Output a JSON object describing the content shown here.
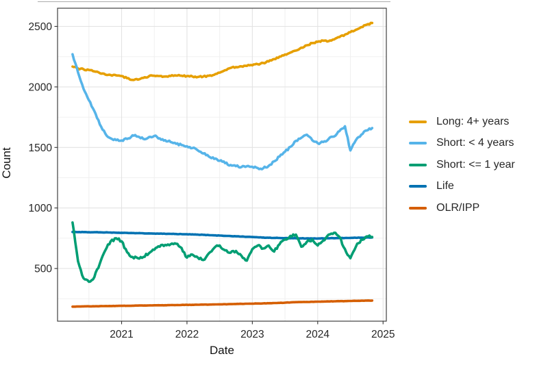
{
  "chart_data": {
    "type": "line",
    "title": "",
    "xlabel": "Date",
    "ylabel": "Count",
    "x_unit": "month",
    "legend_position": "right",
    "grid": true,
    "xlim": [
      2020.02,
      2025.05
    ],
    "ylim": [
      65,
      2650
    ],
    "x_ticks": [
      {
        "value": 2021,
        "label": "2021"
      },
      {
        "value": 2022,
        "label": "2022"
      },
      {
        "value": 2023,
        "label": "2023"
      },
      {
        "value": 2024,
        "label": "2024"
      },
      {
        "value": 2025,
        "label": "2025"
      }
    ],
    "x_minor": [
      2020.5,
      2021.5,
      2022.5,
      2023.5,
      2024.5
    ],
    "y_ticks": [
      {
        "value": 500,
        "label": "500"
      },
      {
        "value": 1000,
        "label": "1000"
      },
      {
        "value": 1500,
        "label": "1500"
      },
      {
        "value": 2000,
        "label": "2000"
      },
      {
        "value": 2500,
        "label": "2500"
      }
    ],
    "y_minor": [
      250,
      750,
      1250,
      1750,
      2250
    ],
    "dates": [
      "2020-04",
      "2020-05",
      "2020-06",
      "2020-07",
      "2020-08",
      "2020-09",
      "2020-10",
      "2020-11",
      "2020-12",
      "2021-01",
      "2021-02",
      "2021-03",
      "2021-04",
      "2021-05",
      "2021-06",
      "2021-07",
      "2021-08",
      "2021-09",
      "2021-10",
      "2021-11",
      "2021-12",
      "2022-01",
      "2022-02",
      "2022-03",
      "2022-04",
      "2022-05",
      "2022-06",
      "2022-07",
      "2022-08",
      "2022-09",
      "2022-10",
      "2022-11",
      "2022-12",
      "2023-01",
      "2023-02",
      "2023-03",
      "2023-04",
      "2023-05",
      "2023-06",
      "2023-07",
      "2023-08",
      "2023-09",
      "2023-10",
      "2023-11",
      "2023-12",
      "2024-01",
      "2024-02",
      "2024-03",
      "2024-04",
      "2024-05",
      "2024-06",
      "2024-07",
      "2024-08",
      "2024-09",
      "2024-10",
      "2024-11"
    ],
    "series": [
      {
        "name": "Long: 4+ years",
        "color": "#E69F00",
        "noise": 6,
        "values": [
          2168,
          2152,
          2146,
          2140,
          2128,
          2114,
          2102,
          2098,
          2095,
          2090,
          2072,
          2058,
          2060,
          2075,
          2088,
          2092,
          2090,
          2086,
          2090,
          2094,
          2092,
          2090,
          2086,
          2082,
          2086,
          2092,
          2100,
          2118,
          2138,
          2156,
          2164,
          2170,
          2174,
          2178,
          2188,
          2198,
          2210,
          2230,
          2250,
          2268,
          2284,
          2300,
          2324,
          2344,
          2362,
          2372,
          2382,
          2378,
          2392,
          2412,
          2432,
          2452,
          2472,
          2494,
          2514,
          2528
        ]
      },
      {
        "name": "Short: < 4 years",
        "color": "#56B4E9",
        "noise": 9,
        "values": [
          2270,
          2120,
          1985,
          1890,
          1800,
          1690,
          1615,
          1575,
          1560,
          1558,
          1570,
          1600,
          1590,
          1570,
          1585,
          1595,
          1575,
          1560,
          1545,
          1530,
          1520,
          1510,
          1495,
          1475,
          1450,
          1425,
          1405,
          1390,
          1370,
          1355,
          1345,
          1338,
          1345,
          1340,
          1330,
          1328,
          1348,
          1385,
          1425,
          1465,
          1505,
          1555,
          1580,
          1605,
          1560,
          1535,
          1545,
          1570,
          1590,
          1635,
          1675,
          1475,
          1560,
          1605,
          1640,
          1660
        ]
      },
      {
        "name": "Short: <= 1 year",
        "color": "#009E73",
        "noise": 11,
        "values": [
          880,
          560,
          420,
          390,
          430,
          540,
          650,
          725,
          750,
          725,
          635,
          595,
          585,
          595,
          625,
          655,
          680,
          695,
          700,
          705,
          670,
          590,
          615,
          590,
          570,
          625,
          670,
          690,
          650,
          630,
          645,
          605,
          565,
          660,
          690,
          665,
          690,
          640,
          700,
          740,
          770,
          780,
          680,
          720,
          740,
          690,
          730,
          780,
          795,
          760,
          660,
          585,
          680,
          740,
          765,
          760
        ]
      },
      {
        "name": "Life",
        "color": "#0072B2",
        "noise": 1.5,
        "values": [
          802,
          801,
          801,
          800,
          800,
          799,
          798,
          797,
          796,
          795,
          794,
          793,
          792,
          791,
          790,
          789,
          788,
          787,
          786,
          785,
          784,
          783,
          782,
          780,
          778,
          776,
          774,
          772,
          770,
          768,
          766,
          764,
          762,
          760,
          758,
          756,
          754,
          753,
          752,
          751,
          750,
          750,
          749,
          749,
          748,
          748,
          749,
          750,
          750,
          751,
          752,
          753,
          754,
          755,
          756,
          757
        ]
      },
      {
        "name": "OLR/IPP",
        "color": "#D55E00",
        "noise": 1,
        "values": [
          185,
          186,
          187,
          188,
          188,
          189,
          190,
          190,
          191,
          192,
          192,
          193,
          194,
          194,
          195,
          196,
          196,
          197,
          198,
          198,
          199,
          200,
          200,
          201,
          202,
          202,
          203,
          204,
          205,
          206,
          207,
          208,
          209,
          210,
          211,
          212,
          213,
          215,
          216,
          218,
          220,
          222,
          223,
          224,
          225,
          226,
          227,
          228,
          229,
          230,
          231,
          232,
          233,
          234,
          235,
          235
        ]
      }
    ]
  }
}
